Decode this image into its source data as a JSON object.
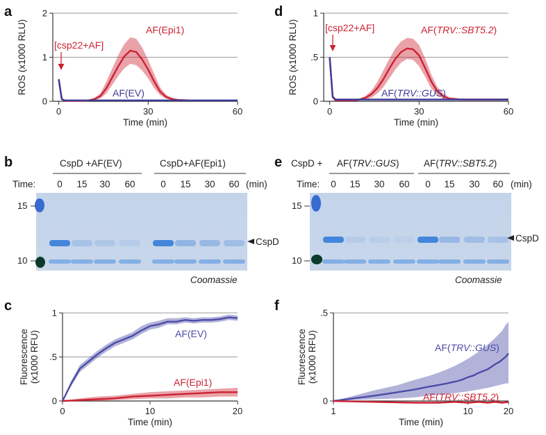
{
  "panels": {
    "a": {
      "letter": "a",
      "annotation": "[csp22+AF]",
      "chart_data": {
        "type": "line",
        "xlabel": "Time (min)",
        "ylabel": "ROS (x1000 RLU)",
        "xlim": [
          -2,
          60
        ],
        "ylim": [
          0,
          2
        ],
        "xticks": [
          "0",
          "30",
          "60"
        ],
        "yticks": [
          "0",
          "1",
          "2"
        ],
        "grid": true,
        "series": [
          {
            "name": "AF(Epi1)",
            "color": "#cc2233",
            "x": [
              0,
              1,
              2,
              4,
              6,
              8,
              10,
              12,
              14,
              16,
              18,
              20,
              22,
              24,
              26,
              28,
              30,
              32,
              34,
              36,
              38,
              40,
              44,
              48,
              52,
              56,
              60
            ],
            "y": [
              0.5,
              0.05,
              0.01,
              0.01,
              0.01,
              0.01,
              0.02,
              0.05,
              0.12,
              0.3,
              0.55,
              0.8,
              1.02,
              1.15,
              1.12,
              0.95,
              0.72,
              0.45,
              0.22,
              0.1,
              0.05,
              0.03,
              0.02,
              0.02,
              0.02,
              0.02,
              0.02
            ],
            "lower": [
              0.45,
              0.03,
              0,
              0,
              0,
              0,
              0.01,
              0.03,
              0.07,
              0.18,
              0.38,
              0.58,
              0.75,
              0.85,
              0.82,
              0.7,
              0.52,
              0.3,
              0.14,
              0.06,
              0.03,
              0.02,
              0.01,
              0.01,
              0.01,
              0.01,
              0.01
            ],
            "upper": [
              0.55,
              0.08,
              0.02,
              0.02,
              0.02,
              0.02,
              0.03,
              0.08,
              0.18,
              0.45,
              0.75,
              1.05,
              1.3,
              1.45,
              1.42,
              1.22,
              0.94,
              0.62,
              0.32,
              0.15,
              0.08,
              0.05,
              0.03,
              0.03,
              0.03,
              0.03,
              0.03
            ]
          },
          {
            "name": "AF(EV)",
            "color": "#3a3a99",
            "x": [
              0,
              1,
              2,
              4,
              10,
              20,
              30,
              40,
              50,
              60
            ],
            "y": [
              0.5,
              0.05,
              0.02,
              0.02,
              0.02,
              0.02,
              0.02,
              0.02,
              0.02,
              0.02
            ]
          }
        ]
      }
    },
    "d": {
      "letter": "d",
      "annotation": "[csp22+AF]",
      "chart_data": {
        "type": "line",
        "xlabel": "Time (min)",
        "ylabel": "ROS (x1000 RLU)",
        "xlim": [
          -2,
          60
        ],
        "ylim": [
          0,
          1
        ],
        "xticks": [
          "0",
          "30",
          "60"
        ],
        "yticks": [
          "0",
          ".5",
          "1"
        ],
        "grid": true,
        "series": [
          {
            "name_prefix": "AF(",
            "name_italic": "TRV::SBT5.2",
            "name_suffix": ")",
            "color": "#cc2233",
            "x": [
              0,
              1,
              2,
              4,
              6,
              8,
              10,
              12,
              14,
              16,
              18,
              20,
              22,
              24,
              26,
              28,
              30,
              32,
              34,
              36,
              38,
              40,
              44,
              48,
              52,
              56,
              60
            ],
            "y": [
              0.5,
              0.05,
              0.01,
              0.01,
              0.01,
              0.01,
              0.02,
              0.04,
              0.08,
              0.15,
              0.25,
              0.37,
              0.48,
              0.56,
              0.6,
              0.59,
              0.52,
              0.38,
              0.23,
              0.12,
              0.06,
              0.03,
              0.02,
              0.02,
              0.02,
              0.02,
              0.02
            ],
            "lower": [
              0.45,
              0.03,
              0,
              0,
              0,
              0,
              0.01,
              0.02,
              0.04,
              0.09,
              0.16,
              0.26,
              0.36,
              0.44,
              0.48,
              0.47,
              0.4,
              0.28,
              0.15,
              0.07,
              0.03,
              0.02,
              0.01,
              0.01,
              0.01,
              0.01,
              0.01
            ],
            "upper": [
              0.55,
              0.08,
              0.02,
              0.02,
              0.02,
              0.02,
              0.03,
              0.06,
              0.12,
              0.22,
              0.35,
              0.48,
              0.6,
              0.68,
              0.72,
              0.71,
              0.64,
              0.49,
              0.31,
              0.17,
              0.09,
              0.05,
              0.03,
              0.03,
              0.03,
              0.03,
              0.03
            ]
          },
          {
            "name_prefix": "AF(",
            "name_italic": "TRV::GUS",
            "name_suffix": ")",
            "color": "#3a3a99",
            "x": [
              0,
              1,
              2,
              4,
              10,
              20,
              30,
              40,
              50,
              60
            ],
            "y": [
              0.5,
              0.05,
              0.02,
              0.02,
              0.02,
              0.02,
              0.02,
              0.02,
              0.02,
              0.02
            ]
          }
        ]
      }
    },
    "b": {
      "letter": "b",
      "groups": [
        "CspD +AF(EV)",
        "CspD+AF(Epi1)"
      ],
      "time_label": "Time:",
      "time_points": [
        "0",
        "15",
        "30",
        "60",
        "0",
        "15",
        "30",
        "60"
      ],
      "time_unit": "(min)",
      "markers": [
        "15",
        "10"
      ],
      "band_label": "CspD",
      "stain": "Coomassie"
    },
    "e": {
      "letter": "e",
      "prefix": "CspD +",
      "groups": [
        {
          "prefix": "AF(",
          "italic": "TRV::GUS",
          "suffix": ")"
        },
        {
          "prefix": "AF(",
          "italic": "TRV::SBT5.2",
          "suffix": ")"
        }
      ],
      "time_label": "Time:",
      "time_points": [
        "0",
        "15",
        "30",
        "60",
        "0",
        "15",
        "30",
        "60"
      ],
      "time_unit": "(min)",
      "markers": [
        "15",
        "10"
      ],
      "band_label": "CspD",
      "stain": "Coomassie"
    },
    "c": {
      "letter": "c",
      "chart_data": {
        "type": "line",
        "xlabel": "Time (min)",
        "ylabel_line1": "Fluorescence",
        "ylabel_line2": "(x1000 RFU)",
        "xlim": [
          0,
          20
        ],
        "ylim": [
          0,
          1
        ],
        "xticks": [
          "0",
          "10",
          "20"
        ],
        "yticks": [
          "0",
          ".5",
          "1"
        ],
        "grid": true,
        "series": [
          {
            "name": "AF(EV)",
            "color": "#4b4ba8",
            "x": [
              0,
              1,
              2,
              3,
              4,
              5,
              6,
              7,
              8,
              9,
              10,
              11,
              12,
              13,
              14,
              15,
              16,
              17,
              18,
              19,
              20
            ],
            "y": [
              0,
              0.2,
              0.37,
              0.45,
              0.53,
              0.6,
              0.66,
              0.7,
              0.74,
              0.8,
              0.85,
              0.87,
              0.9,
              0.9,
              0.92,
              0.91,
              0.92,
              0.92,
              0.93,
              0.95,
              0.94
            ],
            "lower": [
              0,
              0.17,
              0.33,
              0.41,
              0.49,
              0.56,
              0.62,
              0.66,
              0.7,
              0.76,
              0.81,
              0.83,
              0.87,
              0.87,
              0.89,
              0.88,
              0.89,
              0.89,
              0.9,
              0.92,
              0.91
            ],
            "upper": [
              0,
              0.23,
              0.41,
              0.49,
              0.57,
              0.64,
              0.7,
              0.74,
              0.78,
              0.85,
              0.89,
              0.91,
              0.94,
              0.94,
              0.95,
              0.94,
              0.95,
              0.95,
              0.96,
              0.98,
              0.97
            ]
          },
          {
            "name": "AF(Epi1)",
            "color": "#cc2233",
            "x": [
              0,
              2,
              4,
              6,
              8,
              10,
              12,
              14,
              16,
              18,
              20
            ],
            "y": [
              0,
              0.01,
              0.02,
              0.03,
              0.05,
              0.06,
              0.07,
              0.08,
              0.09,
              0.1,
              0.1
            ],
            "lower": [
              0,
              0,
              0,
              0.01,
              0.02,
              0.03,
              0.03,
              0.04,
              0.04,
              0.05,
              0.05
            ],
            "upper": [
              0,
              0.03,
              0.05,
              0.06,
              0.08,
              0.1,
              0.11,
              0.12,
              0.13,
              0.14,
              0.15
            ]
          }
        ]
      }
    },
    "f": {
      "letter": "f",
      "chart_data": {
        "type": "line",
        "xlabel": "Time (min)",
        "ylabel_line1": "Fluorescence",
        "ylabel_line2": "(x1000 RFU)",
        "xscale": "log",
        "xlim": [
          1,
          20
        ],
        "ylim": [
          0,
          0.5
        ],
        "xticks": [
          1,
          10,
          20
        ],
        "xtick_labels": [
          "1",
          "10",
          "20"
        ],
        "yticks": [
          "0",
          ".5"
        ],
        "grid": true,
        "series": [
          {
            "name_prefix": "AF(",
            "name_italic": "TRV::GUS",
            "name_suffix": ")",
            "color": "#4b4ba8",
            "x": [
              1,
              2,
              3,
              4,
              5,
              6,
              7,
              8,
              9,
              10,
              11,
              12,
              13,
              14,
              15,
              16,
              17,
              18,
              19,
              20
            ],
            "y": [
              0,
              0.03,
              0.05,
              0.065,
              0.08,
              0.09,
              0.1,
              0.11,
              0.12,
              0.135,
              0.145,
              0.16,
              0.17,
              0.18,
              0.195,
              0.21,
              0.22,
              0.235,
              0.25,
              0.27
            ],
            "lower": [
              0,
              0.01,
              0.015,
              0.02,
              0.03,
              0.035,
              0.04,
              0.045,
              0.05,
              0.055,
              0.06,
              0.065,
              0.07,
              0.075,
              0.08,
              0.085,
              0.09,
              0.095,
              0.1,
              0.1
            ],
            "upper": [
              0,
              0.06,
              0.09,
              0.12,
              0.14,
              0.16,
              0.18,
              0.2,
              0.22,
              0.24,
              0.26,
              0.28,
              0.3,
              0.32,
              0.34,
              0.36,
              0.38,
              0.4,
              0.43,
              0.45
            ]
          },
          {
            "name_prefix": "AF(",
            "name_italic": "TRV::SBT5.2",
            "name_suffix": ")",
            "color": "#cc2233",
            "x": [
              1,
              2,
              4,
              6,
              8,
              10,
              12,
              14,
              16,
              18,
              20
            ],
            "y": [
              0,
              -0.005,
              -0.01,
              -0.01,
              -0.005,
              -0.01,
              -0.005,
              -0.01,
              -0.005,
              -0.01,
              -0.005
            ]
          }
        ]
      }
    }
  }
}
